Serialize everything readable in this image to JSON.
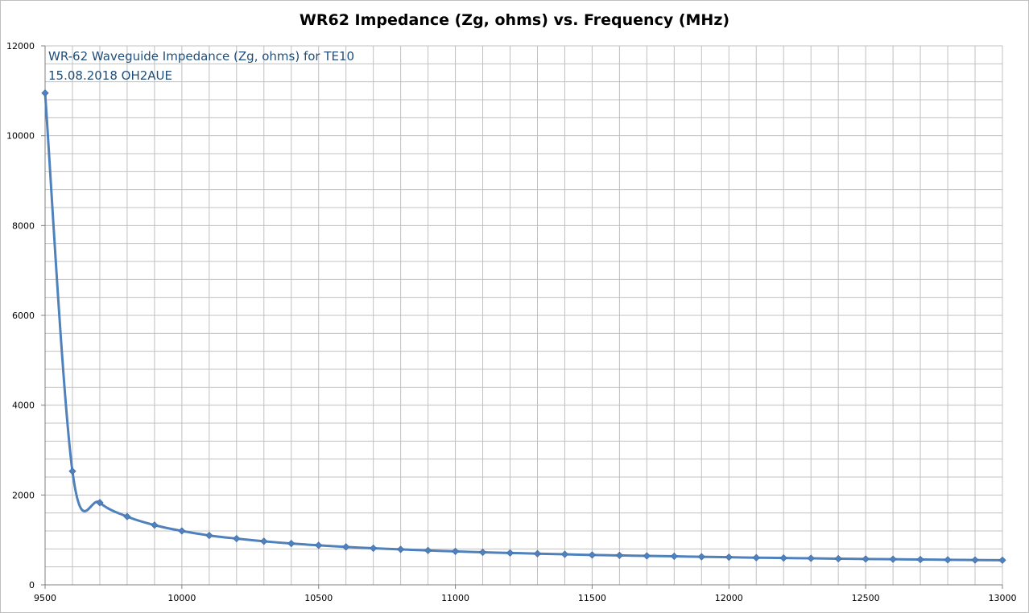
{
  "chart_data": {
    "type": "line",
    "title": "WR62 Impedance (Zg, ohms) vs. Frequency (MHz)",
    "xlabel": "",
    "ylabel": "",
    "xlim": [
      9500,
      13000
    ],
    "ylim": [
      0,
      12000
    ],
    "x_ticks": [
      9500,
      10000,
      10500,
      11000,
      11500,
      12000,
      12500,
      13000
    ],
    "y_ticks": [
      0,
      2000,
      4000,
      6000,
      8000,
      10000,
      12000
    ],
    "x_grid_step": 100,
    "y_grid_step": 400,
    "grid": true,
    "legend": "none",
    "annotations": [
      "WR-62 Waveguide Impedance (Zg, ohms) for TE10",
      "15.08.2018 OH2AUE"
    ],
    "series": [
      {
        "color": "#4f81bd",
        "marker": "diamond",
        "smooth": true,
        "x": [
          9500,
          9600,
          9700,
          9800,
          9900,
          10000,
          10100,
          10200,
          10300,
          10400,
          10500,
          10600,
          10700,
          10800,
          10900,
          11000,
          11100,
          11200,
          11300,
          11400,
          11500,
          11600,
          11700,
          11800,
          11900,
          12000,
          12100,
          12200,
          12300,
          12400,
          12500,
          12600,
          12700,
          12800,
          12900,
          13000
        ],
        "y": [
          10950,
          2530,
          1830,
          1520,
          1330,
          1200,
          1100,
          1030,
          970,
          920,
          880,
          845,
          815,
          790,
          765,
          745,
          725,
          710,
          695,
          680,
          665,
          655,
          645,
          635,
          625,
          615,
          605,
          598,
          590,
          583,
          576,
          570,
          564,
          558,
          553,
          548
        ]
      }
    ]
  }
}
